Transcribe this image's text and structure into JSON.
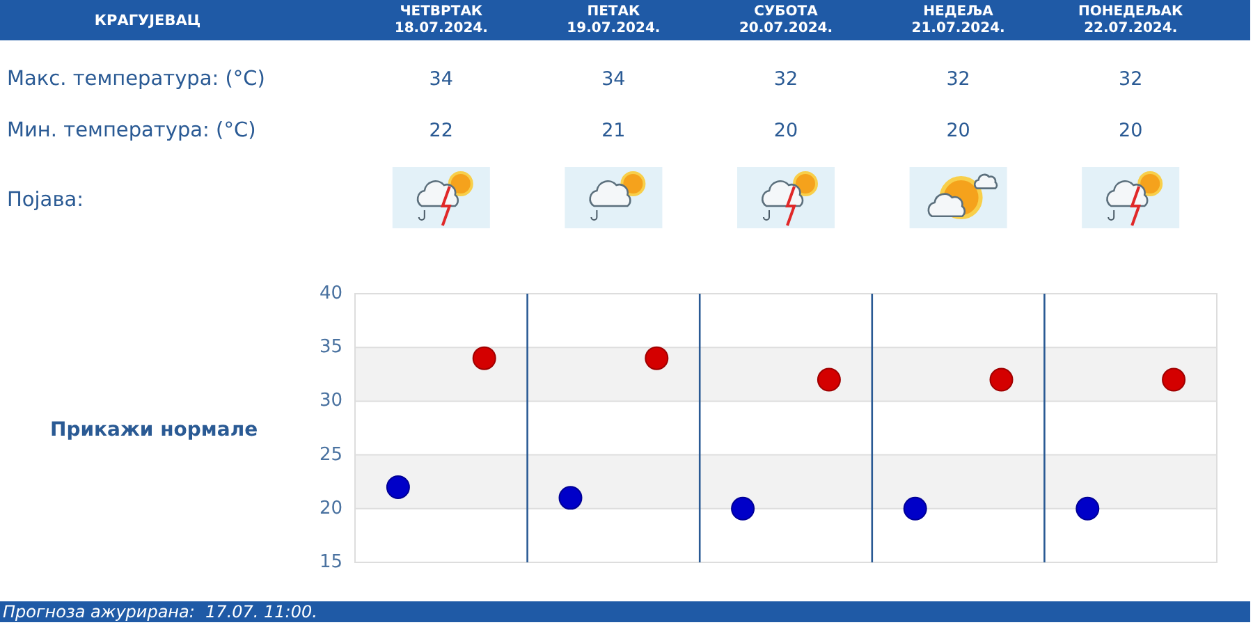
{
  "chart_data": [
    {
      "type": "other",
      "title": "КРАГУЈЕВАЦ",
      "categories": [
        "ЧЕТВРТАК\n18.07.2024.",
        "ПЕТАК\n19.07.2024.",
        "СУБОТА\n20.07.2024.",
        "НЕДЕЉА\n21.07.2024.",
        "ПОНЕДЕЉАК\n22.07.2024."
      ],
      "series": [
        {
          "values": [
            34,
            34,
            32,
            32,
            32
          ]
        },
        {
          "values": [
            22,
            21,
            20,
            20,
            20
          ]
        }
      ],
      "data_labels": true,
      "annotations": [
        "Макс. температура: (°C)",
        "Мин. температура: (°C)",
        "Појава:"
      ]
    },
    {
      "type": "scatter",
      "categories": [
        null,
        null,
        null,
        null,
        null
      ],
      "series": [
        {
          "color": "#d40000",
          "values": [
            34,
            34,
            32,
            32,
            32
          ]
        },
        {
          "color": "#0000c8",
          "values": [
            22,
            21,
            20,
            20,
            20
          ]
        }
      ],
      "ylim": [
        15,
        40
      ],
      "yticks": [
        15,
        20,
        25,
        30,
        35,
        40
      ],
      "grid": true,
      "marker": "circle",
      "bands": [
        {
          "axis": "y",
          "from": 30,
          "to": 35,
          "color": "#f2f2f2"
        },
        {
          "axis": "y",
          "from": 20,
          "to": 25,
          "color": "#f2f2f2"
        }
      ],
      "annotations": [
        "Прикажи нормале",
        "Прогноза ажурирана:  17.07. 11:00."
      ]
    }
  ]
}
